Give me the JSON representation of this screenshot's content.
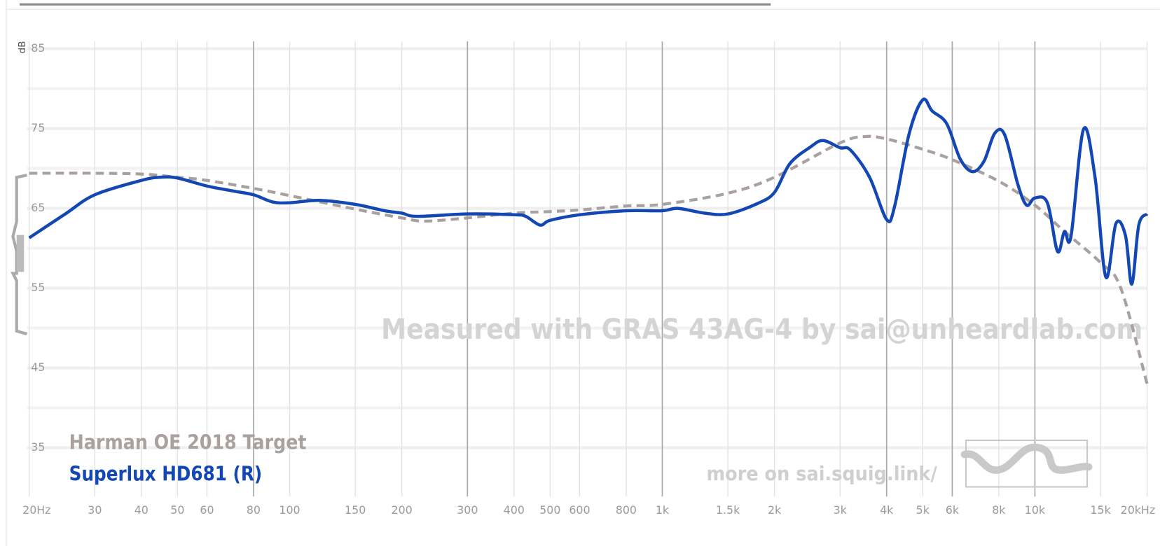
{
  "chart_data": {
    "type": "line",
    "ylabel": "dB",
    "xscale": "log",
    "xlim": [
      20,
      20000
    ],
    "ylim": [
      29,
      86
    ],
    "xticks": [
      {
        "value": 20,
        "label": "20Hz"
      },
      30,
      40,
      50,
      60,
      {
        "value": 80,
        "label": "80",
        "major": true
      },
      100,
      150,
      200,
      {
        "value": 300,
        "label": "300",
        "major": true
      },
      400,
      500,
      600,
      800,
      {
        "value": 1000,
        "label": "1k",
        "major": true
      },
      {
        "value": 1500,
        "label": "1.5k"
      },
      {
        "value": 2000,
        "label": "2k"
      },
      {
        "value": 3000,
        "label": "3k"
      },
      {
        "value": 4000,
        "label": "4k",
        "major": true
      },
      {
        "value": 5000,
        "label": "5k"
      },
      {
        "value": 6000,
        "label": "6k",
        "major": true
      },
      {
        "value": 8000,
        "label": "8k"
      },
      {
        "value": 10000,
        "label": "10k",
        "major": true
      },
      {
        "value": 15000,
        "label": "15k"
      },
      {
        "value": 20000,
        "label": "20kHz"
      }
    ],
    "yticks": [
      35,
      45,
      55,
      65,
      75,
      85
    ],
    "yminorticks": [
      40,
      50,
      60,
      70,
      80
    ],
    "grid": true,
    "series": [
      {
        "name": "Harman OE 2018 Target",
        "color": "#aaa19e",
        "dashed": true,
        "x": [
          20,
          30,
          40,
          50,
          60,
          80,
          100,
          150,
          200,
          230,
          300,
          400,
          500,
          600,
          800,
          1000,
          1500,
          2000,
          3000,
          3500,
          4000,
          5000,
          6000,
          8000,
          10000,
          12000,
          15000,
          17000,
          20000
        ],
        "values": [
          69.4,
          69.4,
          69.3,
          68.9,
          68.5,
          67.5,
          66.6,
          64.9,
          63.8,
          63.4,
          63.8,
          64.4,
          64.6,
          64.8,
          65.3,
          65.5,
          66.9,
          68.9,
          73.2,
          74.0,
          73.7,
          72.4,
          71.1,
          68.4,
          65.4,
          62.1,
          58.2,
          55.0,
          43.0
        ]
      },
      {
        "name": "Superlux HD681 (R)",
        "color": "#1347b4",
        "dashed": false,
        "x": [
          20,
          25,
          30,
          40,
          45,
          50,
          60,
          70,
          80,
          90,
          100,
          120,
          150,
          180,
          200,
          220,
          300,
          400,
          430,
          470,
          500,
          600,
          800,
          1000,
          1100,
          1300,
          1500,
          1800,
          2000,
          2200,
          2500,
          2700,
          3000,
          3200,
          3600,
          4000,
          4200,
          4600,
          5000,
          5300,
          5800,
          6300,
          6800,
          7300,
          7800,
          8300,
          9000,
          9500,
          10000,
          10800,
          11500,
          12000,
          12500,
          13500,
          14500,
          15500,
          16500,
          17500,
          18200,
          19000,
          20000
        ],
        "values": [
          61.3,
          64.3,
          66.7,
          68.5,
          68.9,
          68.8,
          67.8,
          67.2,
          66.7,
          65.8,
          65.7,
          66.0,
          65.5,
          64.7,
          64.4,
          64.0,
          64.3,
          64.2,
          64.0,
          62.9,
          63.5,
          64.2,
          64.7,
          64.7,
          65.0,
          64.4,
          64.3,
          65.6,
          67.0,
          70.6,
          72.7,
          73.5,
          72.6,
          72.3,
          68.9,
          63.6,
          65.2,
          74.4,
          78.6,
          77.2,
          75.6,
          71.2,
          69.6,
          70.9,
          74.4,
          74.2,
          68.0,
          65.4,
          66.3,
          65.7,
          59.6,
          62.1,
          61.5,
          74.9,
          68.9,
          56.4,
          63.1,
          61.6,
          55.5,
          62.9,
          64.3
        ]
      }
    ],
    "annotations": [
      "Measured with GRAS 43AG-4 by sai@unheardlab.com",
      "more on sai.squig.link/"
    ]
  }
}
